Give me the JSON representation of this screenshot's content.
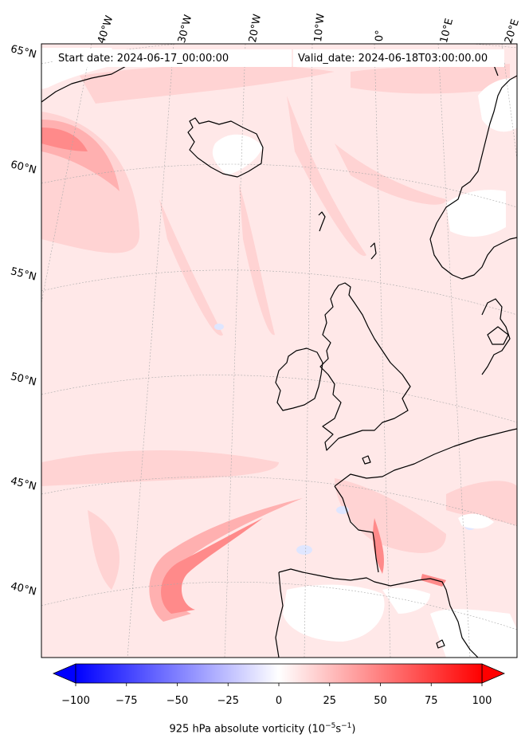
{
  "header": {
    "start_date": "Start date: 2024-06-17_00:00:00",
    "valid_date": "Valid_date: 2024-06-18T03:00:00.00"
  },
  "map": {
    "longitude_labels": [
      "40°W",
      "30°W",
      "20°W",
      "10°W",
      "0°",
      "10°E",
      "20°E"
    ],
    "latitude_labels": [
      "65°N",
      "60°N",
      "55°N",
      "50°N",
      "45°N",
      "40°N"
    ],
    "field_colors": {
      "background": "#ffe8e8",
      "light": "#ffd3d3",
      "medium": "#ffb0b0",
      "strong": "#ff8a8a",
      "negative": "#dfe6ff",
      "land_masked": "#ffffff",
      "coastline": "#000000"
    }
  },
  "colorbar": {
    "ticks": [
      "−100",
      "−75",
      "−50",
      "−25",
      "0",
      "25",
      "50",
      "75",
      "100"
    ],
    "label_main": "925 hPa absolute vorticity (10",
    "label_exp1": "−5",
    "label_mid": "s",
    "label_exp2": "−1",
    "label_end": ")",
    "min_color": "#0000ff",
    "mid_color": "#ffffff",
    "max_color": "#ff0000"
  }
}
